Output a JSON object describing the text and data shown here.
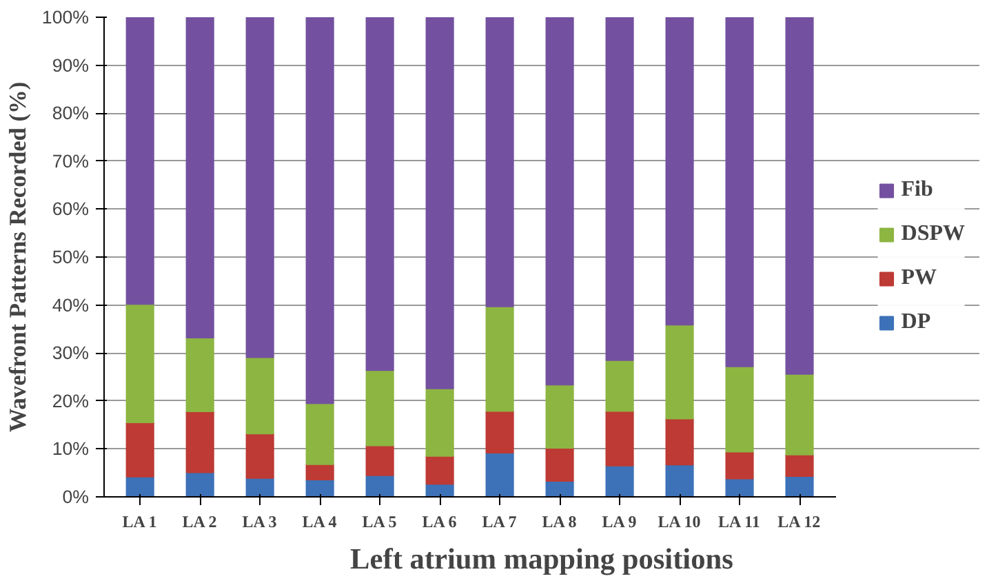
{
  "chart_data": {
    "type": "bar",
    "stacked": true,
    "xlabel": "Left atrium mapping positions",
    "ylabel": "Wavefront Patterns Recorded (%)",
    "categories": [
      "LA 1",
      "LA 2",
      "LA 3",
      "LA 4",
      "LA 5",
      "LA 6",
      "LA 7",
      "LA 8",
      "LA 9",
      "LA 10",
      "LA 11",
      "LA 12"
    ],
    "series": [
      {
        "name": "DP",
        "color": "#3d72b8",
        "values": [
          4.2,
          5.1,
          3.9,
          3.6,
          4.5,
          2.7,
          9.2,
          3.3,
          6.5,
          6.7,
          3.8,
          4.3
        ]
      },
      {
        "name": "PW",
        "color": "#be3a34",
        "values": [
          11.3,
          12.7,
          9.3,
          3.2,
          6.2,
          5.8,
          8.7,
          6.9,
          11.4,
          9.6,
          5.6,
          4.5
        ]
      },
      {
        "name": "DSPW",
        "color": "#8db542",
        "values": [
          24.7,
          15.4,
          15.9,
          12.7,
          15.7,
          14.1,
          21.8,
          13.2,
          10.6,
          19.6,
          17.8,
          16.8
        ]
      },
      {
        "name": "Fib",
        "color": "#7451a0",
        "values": [
          59.8,
          66.8,
          70.9,
          80.5,
          73.6,
          77.4,
          60.3,
          76.6,
          71.5,
          64.1,
          72.8,
          74.4
        ]
      }
    ],
    "ylim": [
      0,
      100
    ],
    "yticks": [
      {
        "value": 0,
        "label": "0%"
      },
      {
        "value": 10,
        "label": "10%"
      },
      {
        "value": 20,
        "label": "20%"
      },
      {
        "value": 30,
        "label": "30%"
      },
      {
        "value": 40,
        "label": "40%"
      },
      {
        "value": 50,
        "label": "50%"
      },
      {
        "value": 60,
        "label": "60%"
      },
      {
        "value": 70,
        "label": "70%"
      },
      {
        "value": 80,
        "label": "80%"
      },
      {
        "value": 90,
        "label": "90%"
      },
      {
        "value": 100,
        "label": "100%"
      }
    ],
    "grid": "y",
    "legend": "right"
  }
}
